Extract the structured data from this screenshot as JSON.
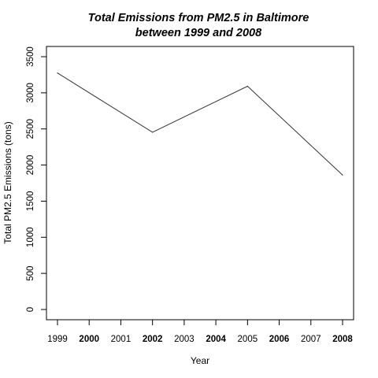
{
  "chart_data": {
    "type": "line",
    "title": [
      "Total Emissions from PM2.5 in Baltimore",
      "between 1999 and 2008"
    ],
    "xlabel": "Year",
    "ylabel": "Total PM2.5 Emissions (tons)",
    "xlim": [
      1999,
      2008
    ],
    "ylim": [
      0,
      3500
    ],
    "x_ticks": [
      1999,
      2000,
      2001,
      2002,
      2003,
      2004,
      2005,
      2006,
      2007,
      2008
    ],
    "x_tick_labels": [
      "1999",
      "2000",
      "2001",
      "2002",
      "2003",
      "2004",
      "2005",
      "2006",
      "2007",
      "2008"
    ],
    "x_tick_bold": [
      false,
      true,
      false,
      true,
      false,
      true,
      false,
      true,
      false,
      true
    ],
    "y_ticks": [
      0,
      500,
      1000,
      1500,
      2000,
      2500,
      3000,
      3500
    ],
    "y_tick_labels": [
      "0",
      "500",
      "1000",
      "1500",
      "2000",
      "2500",
      "3000",
      "3500"
    ],
    "grid": false,
    "legend": "none",
    "line_color": "#333333",
    "series": [
      {
        "x": [
          1999,
          2002,
          2005,
          2008
        ],
        "values": [
          3274,
          2454,
          3091,
          1862
        ]
      }
    ]
  }
}
